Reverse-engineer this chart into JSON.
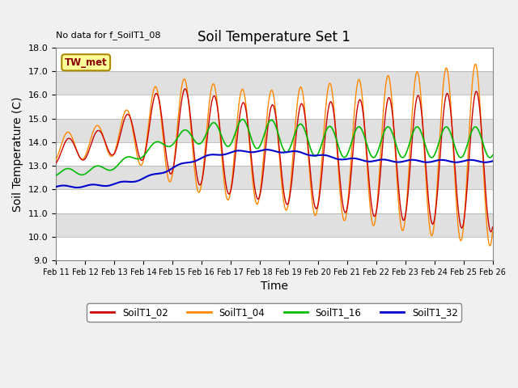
{
  "title": "Soil Temperature Set 1",
  "xlabel": "Time",
  "ylabel": "Soil Temperature (C)",
  "ylim": [
    9.0,
    18.0
  ],
  "yticks": [
    9.0,
    10.0,
    11.0,
    12.0,
    13.0,
    14.0,
    15.0,
    16.0,
    17.0,
    18.0
  ],
  "xtick_labels": [
    "Feb 11",
    "Feb 12",
    "Feb 13",
    "Feb 14",
    "Feb 15",
    "Feb 16",
    "Feb 17",
    "Feb 18",
    "Feb 19",
    "Feb 20",
    "Feb 21",
    "Feb 22",
    "Feb 23",
    "Feb 24",
    "Feb 25",
    "Feb 26"
  ],
  "no_data_text": "No data for f_SoilT1_08",
  "tw_met_label": "TW_met",
  "legend_entries": [
    "SoilT1_02",
    "SoilT1_04",
    "SoilT1_16",
    "SoilT1_32"
  ],
  "line_colors": [
    "#cc0000",
    "#ff8800",
    "#00bb00",
    "#0000cc"
  ],
  "bg_color": "#e8e8e8",
  "title_fontsize": 12,
  "axis_label_fontsize": 10
}
